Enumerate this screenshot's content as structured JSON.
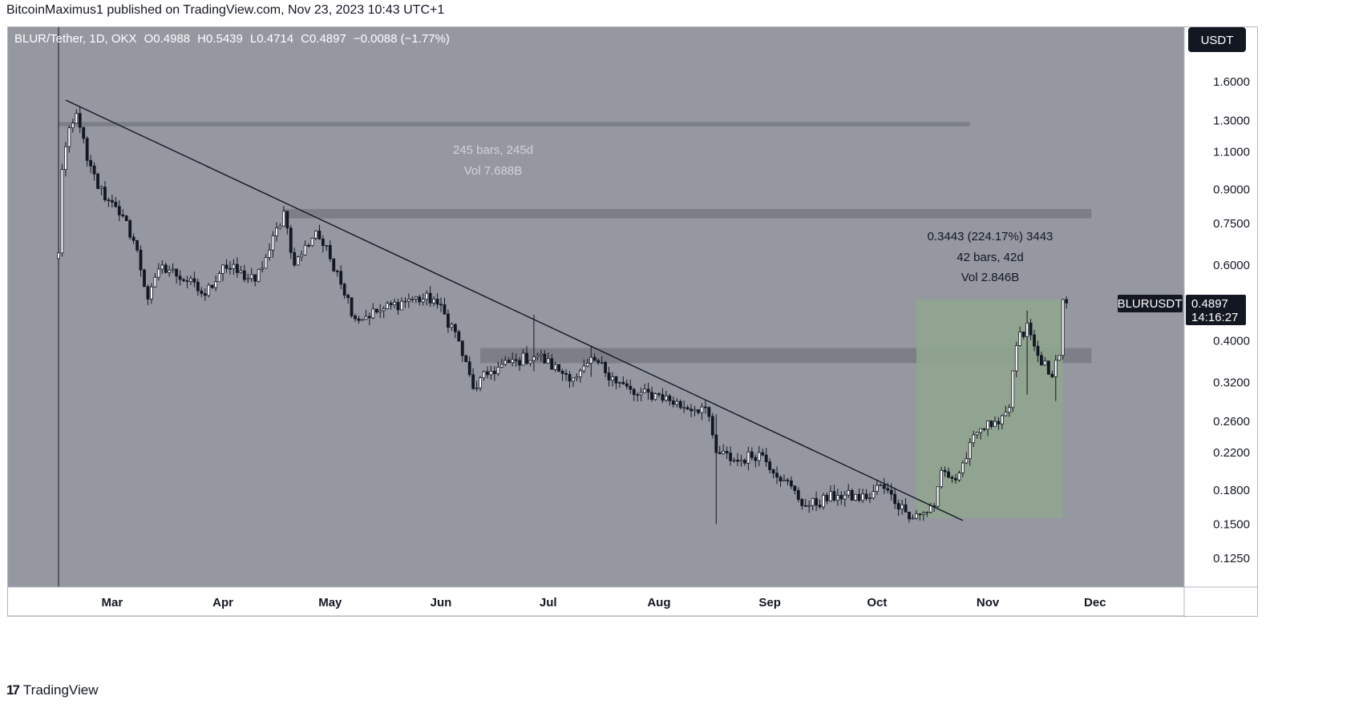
{
  "publisher": "BitcoinMaximus1 published on TradingView.com, Nov 23, 2023 10:43 UTC+1",
  "footer": {
    "logo_mark": "17",
    "brand": "TradingView"
  },
  "colors": {
    "background": "#9598a1",
    "price_scale_bg": "#ffffff",
    "time_scale_bg": "#ffffff",
    "candle": "#131722",
    "trendline": "#131722",
    "resistance_zone": "#7c7f87",
    "measure_box": "#8fa58f",
    "label_bg": "#131722"
  },
  "chart_data": {
    "type": "candlestick",
    "title": "BLUR/Tether, 1D, OKX",
    "ohlc_legend": {
      "o_label": "O",
      "o": "0.4988",
      "h_label": "H",
      "h": "0.5439",
      "l_label": "L",
      "l": "0.4714",
      "c_label": "C",
      "c": "0.4897",
      "change": "−0.0088 (−1.77%)"
    },
    "currency_button": "USDT",
    "y_scale": "log",
    "y_ticks": [
      "1.6000",
      "1.3000",
      "1.1000",
      "0.9000",
      "0.7500",
      "0.6000",
      "0.4000",
      "0.3200",
      "0.2600",
      "0.2200",
      "0.1800",
      "0.1500",
      "0.1250"
    ],
    "x_ticks": [
      "Mar",
      "Apr",
      "May",
      "Jun",
      "Jul",
      "Aug",
      "Sep",
      "Oct",
      "Nov",
      "Dec"
    ],
    "price_label": {
      "symbol": "BLURUSDT",
      "price": "0.4897",
      "countdown": "14:16:27"
    },
    "resistance_zones": [
      {
        "from": "2023-02-14",
        "to": "2023-10-27",
        "low": 1.26,
        "high": 1.29
      },
      {
        "from": "2023-04-18",
        "to": "2023-11-30",
        "low": 0.77,
        "high": 0.81
      },
      {
        "from": "2023-06-12",
        "to": "2023-11-30",
        "low": 0.355,
        "high": 0.385
      }
    ],
    "trendline": {
      "from": {
        "date": "2023-02-16",
        "price": 1.45
      },
      "to": {
        "date": "2023-10-25",
        "price": 0.153
      }
    },
    "measure_box": {
      "from": "2023-10-12",
      "to": "2023-11-22",
      "low": 0.155,
      "high": 0.499
    },
    "annotations": {
      "long_range": {
        "line1": "245 bars, 245d",
        "line2": "Vol 7.688B"
      },
      "rally": {
        "line1": "0.3443 (224.17%) 3443",
        "line2": "42 bars, 42d",
        "line3": "Vol 2.846B"
      }
    },
    "series_anchors": [
      {
        "date": "2023-02-14",
        "price": 0.64
      },
      {
        "date": "2023-02-15",
        "price": 1.0
      },
      {
        "date": "2023-02-17",
        "price": 1.25
      },
      {
        "date": "2023-02-19",
        "price": 1.35
      },
      {
        "date": "2023-02-22",
        "price": 1.05
      },
      {
        "date": "2023-02-27",
        "price": 0.85
      },
      {
        "date": "2023-03-04",
        "price": 0.78
      },
      {
        "date": "2023-03-08",
        "price": 0.65
      },
      {
        "date": "2023-03-11",
        "price": 0.5
      },
      {
        "date": "2023-03-15",
        "price": 0.6
      },
      {
        "date": "2023-03-22",
        "price": 0.55
      },
      {
        "date": "2023-03-27",
        "price": 0.51
      },
      {
        "date": "2023-04-01",
        "price": 0.6
      },
      {
        "date": "2023-04-10",
        "price": 0.55
      },
      {
        "date": "2023-04-14",
        "price": 0.65
      },
      {
        "date": "2023-04-18",
        "price": 0.8
      },
      {
        "date": "2023-04-21",
        "price": 0.6
      },
      {
        "date": "2023-04-27",
        "price": 0.72
      },
      {
        "date": "2023-05-03",
        "price": 0.58
      },
      {
        "date": "2023-05-08",
        "price": 0.45
      },
      {
        "date": "2023-05-15",
        "price": 0.47
      },
      {
        "date": "2023-05-23",
        "price": 0.5
      },
      {
        "date": "2023-05-30",
        "price": 0.5
      },
      {
        "date": "2023-06-05",
        "price": 0.42
      },
      {
        "date": "2023-06-10",
        "price": 0.31
      },
      {
        "date": "2023-06-15",
        "price": 0.34
      },
      {
        "date": "2023-06-22",
        "price": 0.36
      },
      {
        "date": "2023-06-28",
        "price": 0.37
      },
      {
        "date": "2023-07-04",
        "price": 0.34
      },
      {
        "date": "2023-07-09",
        "price": 0.33
      },
      {
        "date": "2023-07-14",
        "price": 0.36
      },
      {
        "date": "2023-07-19",
        "price": 0.33
      },
      {
        "date": "2023-07-25",
        "price": 0.3
      },
      {
        "date": "2023-08-01",
        "price": 0.3
      },
      {
        "date": "2023-08-08",
        "price": 0.28
      },
      {
        "date": "2023-08-14",
        "price": 0.28
      },
      {
        "date": "2023-08-17",
        "price": 0.22
      },
      {
        "date": "2023-08-23",
        "price": 0.21
      },
      {
        "date": "2023-08-29",
        "price": 0.22
      },
      {
        "date": "2023-09-05",
        "price": 0.19
      },
      {
        "date": "2023-09-11",
        "price": 0.165
      },
      {
        "date": "2023-09-20",
        "price": 0.175
      },
      {
        "date": "2023-09-28",
        "price": 0.172
      },
      {
        "date": "2023-10-02",
        "price": 0.185
      },
      {
        "date": "2023-10-09",
        "price": 0.16
      },
      {
        "date": "2023-10-13",
        "price": 0.158
      },
      {
        "date": "2023-10-17",
        "price": 0.165
      },
      {
        "date": "2023-10-19",
        "price": 0.2
      },
      {
        "date": "2023-10-23",
        "price": 0.19
      },
      {
        "date": "2023-10-29",
        "price": 0.245
      },
      {
        "date": "2023-11-03",
        "price": 0.26
      },
      {
        "date": "2023-11-07",
        "price": 0.28
      },
      {
        "date": "2023-11-09",
        "price": 0.39
      },
      {
        "date": "2023-11-12",
        "price": 0.44
      },
      {
        "date": "2023-11-15",
        "price": 0.37
      },
      {
        "date": "2023-11-19",
        "price": 0.33
      },
      {
        "date": "2023-11-21",
        "price": 0.37
      },
      {
        "date": "2023-11-22",
        "price": 0.4988
      },
      {
        "date": "2023-11-23",
        "price": 0.4897
      }
    ],
    "extreme_wicks": [
      {
        "date": "2023-02-14",
        "high": 9.0,
        "low": 0.1
      },
      {
        "date": "2023-06-27",
        "high": 0.46,
        "low": 0.34
      },
      {
        "date": "2023-07-13",
        "high": 0.39,
        "low": 0.33
      },
      {
        "date": "2023-08-17",
        "high": 0.27,
        "low": 0.15
      },
      {
        "date": "2023-11-12",
        "high": 0.47,
        "low": 0.3
      },
      {
        "date": "2023-11-20",
        "high": 0.34,
        "low": 0.29
      }
    ]
  }
}
